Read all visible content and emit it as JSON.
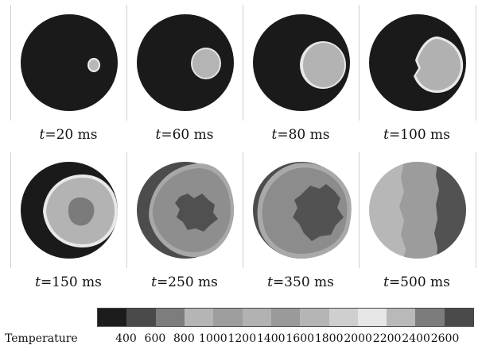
{
  "panels": [
    {
      "prefix": "t",
      "value": "=20 ms"
    },
    {
      "prefix": "t",
      "value": "=60 ms"
    },
    {
      "prefix": "t",
      "value": "=80 ms"
    },
    {
      "prefix": "t",
      "value": "=100 ms"
    },
    {
      "prefix": "t",
      "value": "=150 ms"
    },
    {
      "prefix": "t",
      "value": "=250 ms"
    },
    {
      "prefix": "t",
      "value": "=350 ms"
    },
    {
      "prefix": "t",
      "value": "=500 ms"
    }
  ],
  "colorbar": {
    "title": "Temperature",
    "ticks": [
      "400",
      "600",
      "800",
      "1000",
      "1200",
      "1400",
      "1600",
      "1800",
      "2000",
      "2200",
      "2400",
      "2600"
    ],
    "colors": [
      "#1c1c1c",
      "#4a4a4a",
      "#7d7d7d",
      "#b5b5b5",
      "#9e9e9e",
      "#b2b2b2",
      "#9a9a9a",
      "#b5b5b5",
      "#cfcfcf",
      "#e6e6e6",
      "#b9b9b9",
      "#7c7c7c",
      "#4a4a4a"
    ]
  }
}
